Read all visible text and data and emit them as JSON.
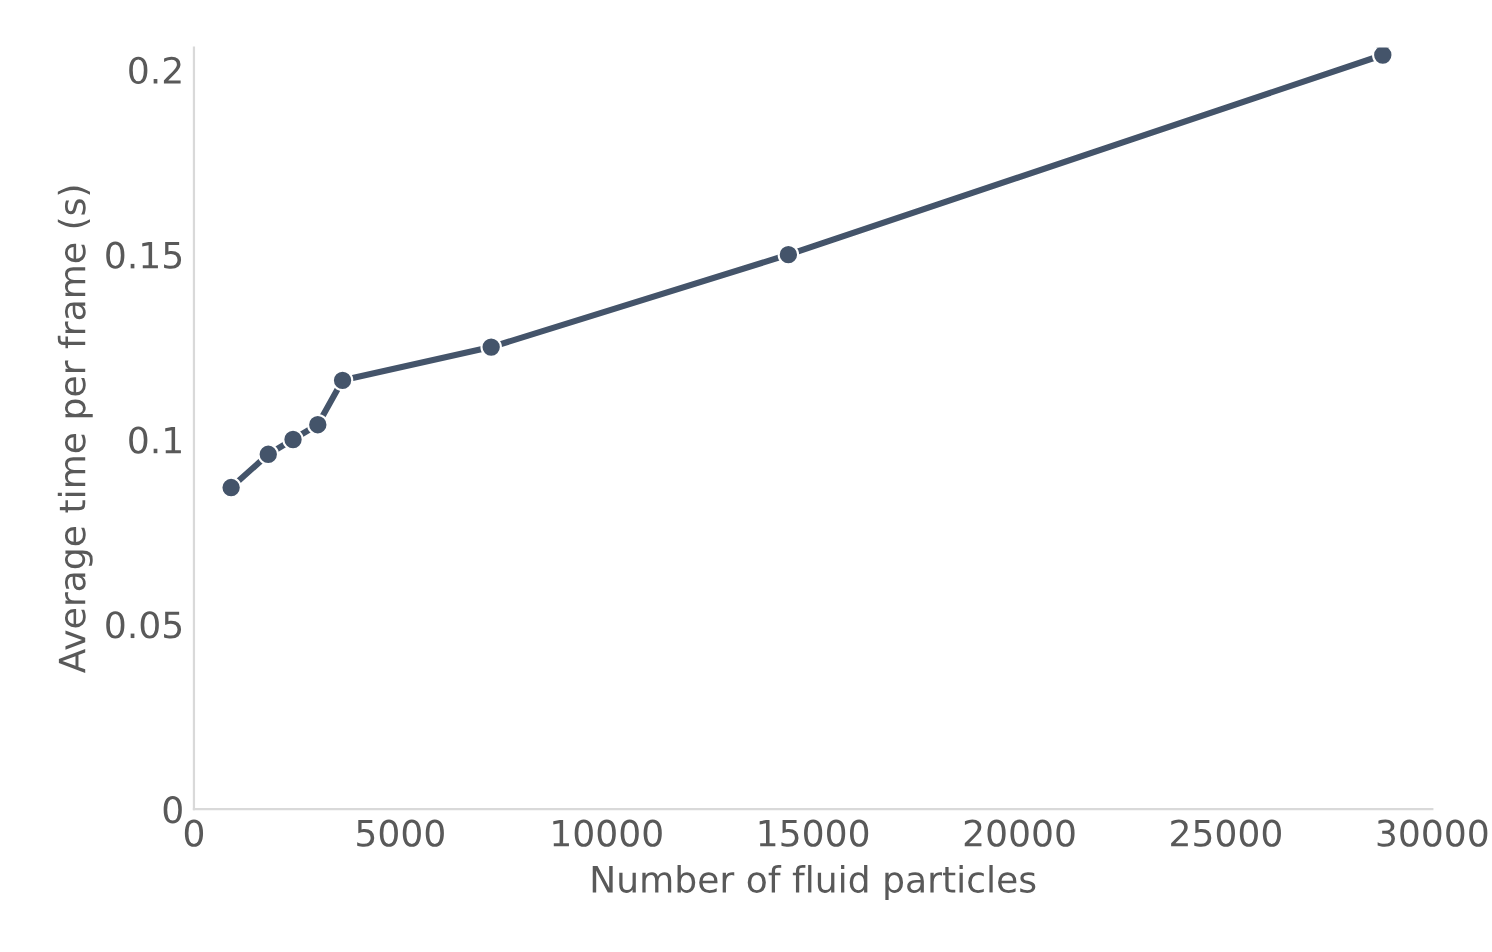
{
  "chart_data": {
    "type": "line",
    "xlabel": "Number of fluid particles",
    "ylabel": "Average time per frame (s)",
    "x": [
      900,
      1800,
      2400,
      3000,
      3600,
      7200,
      14400,
      28800
    ],
    "series": [
      {
        "color": "#44546a",
        "values": [
          0.087,
          0.096,
          0.1,
          0.104,
          0.116,
          0.125,
          0.15,
          0.204
        ]
      }
    ],
    "xlim": [
      0,
      30000
    ],
    "xticks": [
      0,
      5000,
      10000,
      15000,
      20000,
      25000,
      30000
    ],
    "ylim": [
      0,
      0.206
    ],
    "yticks": [
      0,
      0.05,
      0.1,
      0.15,
      0.2
    ],
    "grid": false,
    "marker": "circle",
    "line_style": "solid"
  }
}
